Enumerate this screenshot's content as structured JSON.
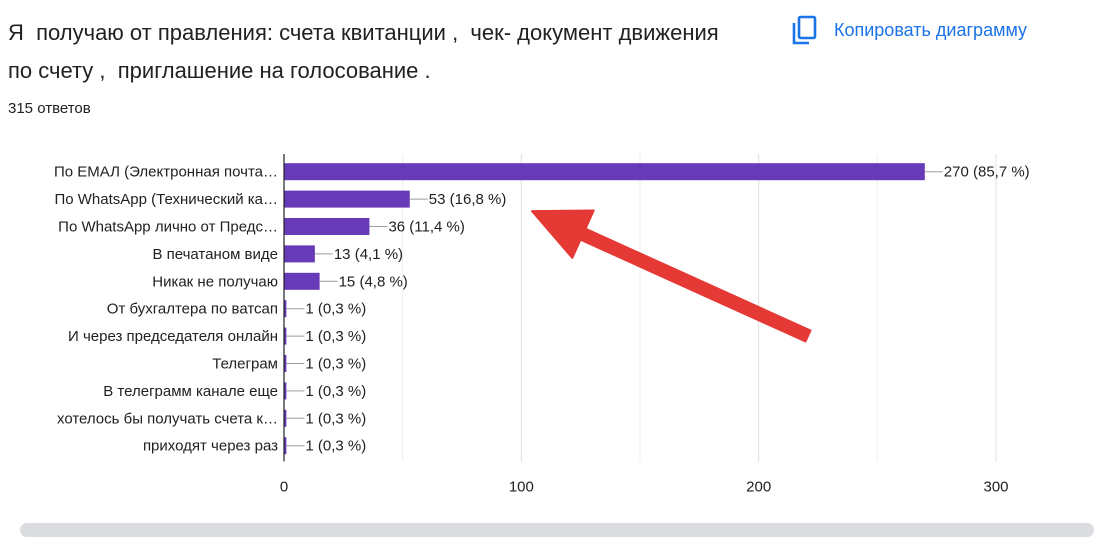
{
  "question": {
    "text": "Я  получаю от правления: счета квитанции ,  чек- документ движения по счету ,  приглашение на голосование .",
    "response_count": "315 ответов"
  },
  "toolbar": {
    "copy_label": "Копировать диаграмму",
    "copy_icon": "copy-icon"
  },
  "colors": {
    "bar": "#673ab7",
    "grid": "#e0e0e0",
    "axis": "#202124",
    "arrow": "#e53935",
    "accent": "#1a73e8"
  },
  "chart_data": {
    "type": "bar",
    "orientation": "horizontal",
    "categories": [
      "По ЕМАЛ (Электронная почта…",
      "По WhatsApp (Технический ка…",
      "По WhatsApp лично от Предс…",
      "В печатаном виде",
      "Никак не получаю",
      "От бухгалтера по ватсап",
      "И через председателя онлайн",
      "Телеграм",
      "В телеграмм канале еще",
      "хотелось бы получать счета к…",
      "приходят через раз"
    ],
    "values": [
      270,
      53,
      36,
      13,
      15,
      1,
      1,
      1,
      1,
      1,
      1
    ],
    "value_labels": [
      "270 (85,7 %)",
      "53 (16,8 %)",
      "36 (11,4 %)",
      "13 (4,1 %)",
      "15 (4,8 %)",
      "1 (0,3 %)",
      "1 (0,3 %)",
      "1 (0,3 %)",
      "1 (0,3 %)",
      "1 (0,3 %)",
      "1 (0,3 %)"
    ],
    "xlim": [
      0,
      300
    ],
    "xticks": [
      0,
      100,
      200,
      300
    ],
    "grid": true,
    "annotation": {
      "type": "arrow",
      "color": "#e53935",
      "points_to": "По WhatsApp (Технический ка…"
    }
  }
}
